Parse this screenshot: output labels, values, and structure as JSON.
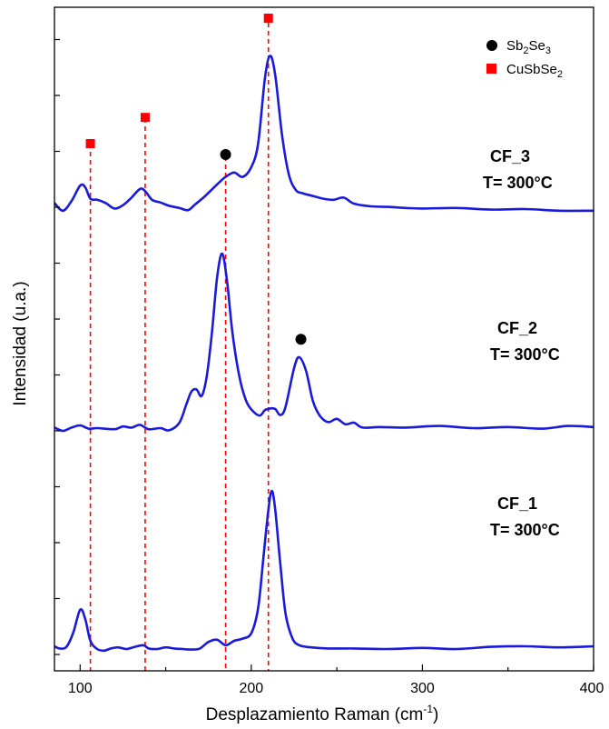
{
  "chart_data": {
    "type": "line",
    "xlabel_main": "Desplazamiento Raman (cm",
    "xlabel_sup": "-1",
    "xlabel_end": ")",
    "ylabel": "Intensidad (u.a.)",
    "xlim": [
      85,
      400
    ],
    "xticks": [
      "100",
      "200",
      "300",
      "400"
    ],
    "xtick_values": [
      100,
      200,
      300,
      400
    ],
    "grid": false,
    "legend_position": "top-right",
    "legend": [
      {
        "marker": "circle",
        "color": "#000000",
        "base": "Sb",
        "sub1": "2",
        "mid": "Se",
        "sub2": "3"
      },
      {
        "marker": "square",
        "color": "#ff0000",
        "base": "CuSbSe",
        "sub1": "2",
        "mid": "",
        "sub2": ""
      }
    ],
    "reference_lines_cm1": [
      106,
      138,
      185,
      210
    ],
    "reference_line_color": "#ff0000",
    "line_color": "#1a1adc",
    "series": [
      {
        "name": "CF_3",
        "label_line1": "CF_3",
        "label_line2": "T= 300°C",
        "points": [
          [
            85,
            1.6
          ],
          [
            90,
            0.2
          ],
          [
            95,
            2.0
          ],
          [
            100,
            4.8
          ],
          [
            103,
            4.5
          ],
          [
            106,
            2.4
          ],
          [
            110,
            2.2
          ],
          [
            115,
            1.6
          ],
          [
            120,
            0.6
          ],
          [
            125,
            1.2
          ],
          [
            130,
            2.6
          ],
          [
            135,
            4.2
          ],
          [
            138,
            3.8
          ],
          [
            142,
            2.2
          ],
          [
            147,
            1.7
          ],
          [
            152,
            1.1
          ],
          [
            158,
            0.7
          ],
          [
            163,
            0.3
          ],
          [
            167,
            1.3
          ],
          [
            172,
            2.6
          ],
          [
            177,
            4.1
          ],
          [
            181,
            5.3
          ],
          [
            185,
            6.4
          ],
          [
            190,
            7.2
          ],
          [
            195,
            6.4
          ],
          [
            200,
            8.2
          ],
          [
            204,
            12.5
          ],
          [
            208,
            24.5
          ],
          [
            211,
            28.6
          ],
          [
            214,
            25.0
          ],
          [
            218,
            14.0
          ],
          [
            222,
            6.8
          ],
          [
            226,
            4.0
          ],
          [
            230,
            3.4
          ],
          [
            236,
            2.9
          ],
          [
            242,
            2.4
          ],
          [
            248,
            2.2
          ],
          [
            254,
            2.6
          ],
          [
            260,
            1.5
          ],
          [
            270,
            1.0
          ],
          [
            280,
            0.9
          ],
          [
            290,
            0.7
          ],
          [
            300,
            0.6
          ],
          [
            320,
            0.7
          ],
          [
            340,
            0.4
          ],
          [
            360,
            0.5
          ],
          [
            380,
            0.2
          ],
          [
            400,
            0.2
          ]
        ]
      },
      {
        "name": "CF_2",
        "label_line1": "CF_2",
        "label_line2": "T= 300°C",
        "points": [
          [
            85,
            0.6
          ],
          [
            90,
            0.0
          ],
          [
            95,
            0.6
          ],
          [
            100,
            1.0
          ],
          [
            105,
            0.4
          ],
          [
            110,
            0.5
          ],
          [
            120,
            0.3
          ],
          [
            125,
            0.8
          ],
          [
            130,
            0.6
          ],
          [
            135,
            1.1
          ],
          [
            140,
            0.3
          ],
          [
            147,
            0.5
          ],
          [
            152,
            0.1
          ],
          [
            158,
            1.5
          ],
          [
            162,
            4.8
          ],
          [
            165,
            7.2
          ],
          [
            168,
            7.6
          ],
          [
            171,
            6.4
          ],
          [
            174,
            10.0
          ],
          [
            177,
            18.0
          ],
          [
            180,
            28.0
          ],
          [
            183,
            32.5
          ],
          [
            186,
            27.0
          ],
          [
            189,
            18.0
          ],
          [
            193,
            10.0
          ],
          [
            197,
            5.5
          ],
          [
            201,
            3.6
          ],
          [
            205,
            2.8
          ],
          [
            208,
            3.8
          ],
          [
            211,
            4.1
          ],
          [
            214,
            4.0
          ],
          [
            217,
            2.9
          ],
          [
            220,
            4.4
          ],
          [
            225,
            11.5
          ],
          [
            228,
            13.5
          ],
          [
            232,
            11.0
          ],
          [
            236,
            5.5
          ],
          [
            240,
            2.8
          ],
          [
            245,
            1.6
          ],
          [
            250,
            2.2
          ],
          [
            255,
            1.2
          ],
          [
            260,
            1.5
          ],
          [
            265,
            0.6
          ],
          [
            275,
            0.7
          ],
          [
            290,
            0.6
          ],
          [
            310,
            0.9
          ],
          [
            330,
            0.5
          ],
          [
            350,
            0.7
          ],
          [
            370,
            0.4
          ],
          [
            385,
            0.9
          ],
          [
            400,
            0.7
          ]
        ]
      },
      {
        "name": "CF_1",
        "label_line1": "CF_1",
        "label_line2": "T= 300°C",
        "points": [
          [
            85,
            1.0
          ],
          [
            88,
            0.6
          ],
          [
            92,
            0.9
          ],
          [
            96,
            3.5
          ],
          [
            100,
            7.7
          ],
          [
            103,
            6.0
          ],
          [
            106,
            2.0
          ],
          [
            110,
            0.5
          ],
          [
            114,
            0.2
          ],
          [
            118,
            0.6
          ],
          [
            122,
            0.8
          ],
          [
            127,
            0.5
          ],
          [
            132,
            0.9
          ],
          [
            137,
            1.2
          ],
          [
            140,
            0.6
          ],
          [
            145,
            0.5
          ],
          [
            150,
            0.8
          ],
          [
            155,
            0.6
          ],
          [
            160,
            0.5
          ],
          [
            165,
            0.4
          ],
          [
            170,
            0.6
          ],
          [
            175,
            1.8
          ],
          [
            180,
            2.2
          ],
          [
            185,
            1.2
          ],
          [
            190,
            2.0
          ],
          [
            195,
            2.4
          ],
          [
            200,
            3.4
          ],
          [
            204,
            8.0
          ],
          [
            207,
            17.0
          ],
          [
            210,
            26.0
          ],
          [
            212,
            29.5
          ],
          [
            214,
            26.0
          ],
          [
            217,
            16.0
          ],
          [
            220,
            7.0
          ],
          [
            224,
            2.5
          ],
          [
            228,
            1.2
          ],
          [
            235,
            0.8
          ],
          [
            245,
            0.6
          ],
          [
            260,
            0.6
          ],
          [
            280,
            0.5
          ],
          [
            300,
            0.7
          ],
          [
            320,
            0.5
          ],
          [
            340,
            0.9
          ],
          [
            360,
            1.0
          ],
          [
            380,
            0.8
          ],
          [
            400,
            1.0
          ]
        ]
      }
    ],
    "annotations": [
      {
        "marker": "square",
        "series": "CF_3",
        "x": 106,
        "y": 12.5
      },
      {
        "marker": "square",
        "series": "CF_3",
        "x": 138,
        "y": 17.3
      },
      {
        "marker": "square",
        "series": "CF_3",
        "x": 210,
        "y": 35.5
      },
      {
        "marker": "circle",
        "series": "CF_3",
        "x": 185,
        "y": 10.5
      },
      {
        "marker": "circle",
        "series": "CF_2",
        "x": 229,
        "y": 16.8
      }
    ]
  }
}
